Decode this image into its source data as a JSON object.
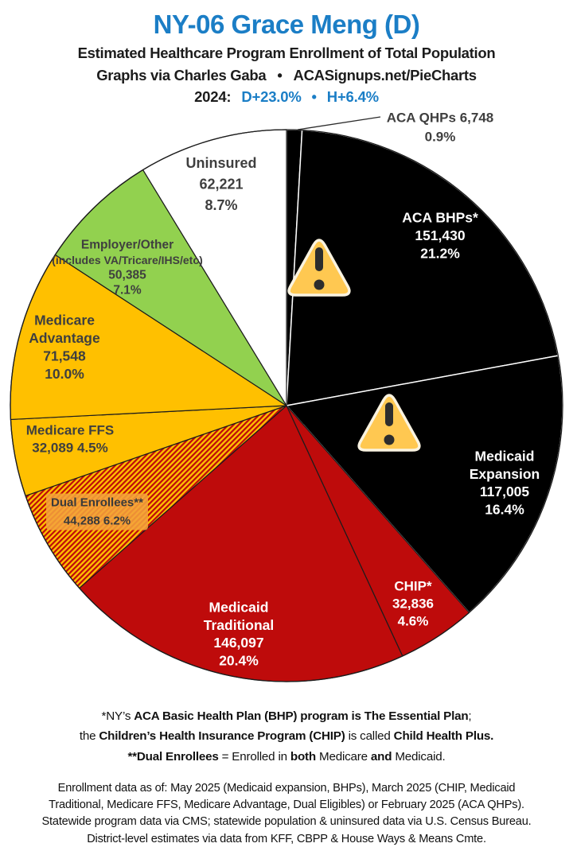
{
  "header": {
    "title": "NY-06 Grace Meng (D)",
    "subtitle": "Estimated Healthcare Program Enrollment of Total Population",
    "credit_prefix": "Graphs via Charles Gaba",
    "credit_bullet": "•",
    "credit_site": "ACASignups.net/PieCharts",
    "election_year_label": "2024:",
    "election_dem_margin": "D+23.0%",
    "election_bullet": "•",
    "election_house_margin": "H+6.4%",
    "accent_blue": "#1B7EC6"
  },
  "chart_data": {
    "type": "pie",
    "title": "Estimated Healthcare Program Enrollment of Total Population",
    "start_angle_deg": 0,
    "direction": "clockwise",
    "slices": [
      {
        "label": "ACA QHPs",
        "value": 6748,
        "display_value": "6,748",
        "pct_value": 0.9,
        "display_pct": "0.9%",
        "color": "#000000",
        "text_color": "#3F3F3F",
        "label_lines": [
          "ACA QHPs 6,748",
          "0.9%"
        ],
        "label_style": "leader"
      },
      {
        "label": "ACA BHPs*",
        "value": 151430,
        "display_value": "151,430",
        "pct_value": 21.2,
        "display_pct": "21.2%",
        "color": "#000000",
        "text_color": "#FFFFFF",
        "label_lines": [
          "ACA BHPs*",
          "151,430",
          "21.2%"
        ],
        "label_style": "inside"
      },
      {
        "label": "Medicaid Expansion",
        "value": 117005,
        "display_value": "117,005",
        "pct_value": 16.4,
        "display_pct": "16.4%",
        "color": "#000000",
        "text_color": "#FFFFFF",
        "label_lines": [
          "Medicaid",
          "Expansion",
          "117,005",
          "16.4%"
        ],
        "label_style": "inside"
      },
      {
        "label": "CHIP*",
        "value": 32836,
        "display_value": "32,836",
        "pct_value": 4.6,
        "display_pct": "4.6%",
        "color": "#BE0B0B",
        "text_color": "#FFFFFF",
        "label_lines": [
          "CHIP*",
          "32,836",
          "4.6%"
        ],
        "label_style": "inside"
      },
      {
        "label": "Medicaid Traditional",
        "value": 146097,
        "display_value": "146,097",
        "pct_value": 20.4,
        "display_pct": "20.4%",
        "color": "#BE0B0B",
        "text_color": "#FFFFFF",
        "label_lines": [
          "Medicaid",
          "Traditional",
          "146,097",
          "20.4%"
        ],
        "label_style": "inside"
      },
      {
        "label": "Dual Enrollees**",
        "value": 44288,
        "display_value": "44,288",
        "pct_value": 6.2,
        "display_pct": "6.2%",
        "color": "hatch-red-gold",
        "text_color": "#3A3A3A",
        "label_lines": [
          "Dual Enrollees**",
          "44,288 6.2%"
        ],
        "label_style": "boxed"
      },
      {
        "label": "Medicare FFS",
        "value": 32089,
        "display_value": "32,089",
        "pct_value": 4.5,
        "display_pct": "4.5%",
        "color": "#FFC000",
        "text_color": "#3F3F3F",
        "label_lines": [
          "Medicare FFS",
          "32,089 4.5%"
        ],
        "label_style": "inside"
      },
      {
        "label": "Medicare Advantage",
        "value": 71548,
        "display_value": "71,548",
        "pct_value": 10.0,
        "display_pct": "10.0%",
        "color": "#FFC000",
        "text_color": "#3F3F3F",
        "label_lines": [
          "Medicare",
          "Advantage",
          "71,548",
          "10.0%"
        ],
        "label_style": "inside"
      },
      {
        "label": "Employer/Other",
        "value": 50385,
        "display_value": "50,385",
        "pct_value": 7.1,
        "display_pct": "7.1%",
        "color": "#92D14F",
        "text_color": "#3F3F3F",
        "label_lines": [
          "Employer/Other",
          "(includes VA/Tricare/IHS/etc)",
          "50,385",
          "7.1%"
        ],
        "label_style": "inside"
      },
      {
        "label": "Uninsured",
        "value": 62221,
        "display_value": "62,221",
        "pct_value": 8.7,
        "display_pct": "8.7%",
        "color": "#FFFFFF",
        "text_color": "#3F3F3F",
        "label_lines": [
          "Uninsured",
          "62,221",
          "8.7%"
        ],
        "label_style": "inside"
      }
    ],
    "warning_icons": {
      "name": "warning-triangle-icon",
      "count": 2,
      "fill": "#FFC851"
    },
    "hatch_colors": {
      "base": "#FFC000",
      "stripe": "#BE0B0B"
    },
    "legend_position": "none",
    "grid": false
  },
  "footnotes": {
    "lines": [
      [
        {
          "t": "*NY’s ",
          "b": false
        },
        {
          "t": "ACA Basic Health Plan (BHP) program is The Essential Plan",
          "b": true
        },
        {
          "t": ";",
          "b": false
        }
      ],
      [
        {
          "t": "the ",
          "b": false
        },
        {
          "t": "Children’s Health Insurance Program (CHIP)",
          "b": true
        },
        {
          "t": " is called ",
          "b": false
        },
        {
          "t": "Child Health Plus.",
          "b": true
        }
      ],
      [
        {
          "t": "**Dual Enrollees",
          "b": true
        },
        {
          "t": " = Enrolled in ",
          "b": false
        },
        {
          "t": "both",
          "b": true
        },
        {
          "t": " Medicare ",
          "b": false
        },
        {
          "t": "and",
          "b": true
        },
        {
          "t": " Medicaid.",
          "b": false
        }
      ]
    ]
  },
  "source_note": {
    "lines": [
      "Enrollment data as of: May 2025 (Medicaid expansion, BHPs), March 2025 (CHIP, Medicaid",
      "Traditional, Medicare FFS, Medicare Advantage, Dual Eligibles) or February 2025 (ACA QHPs).",
      "Statewide program data via CMS; statewide population & uninsured data via U.S. Census Bureau.",
      "District-level estimates via data from KFF, CBPP & House Ways & Means Cmte."
    ]
  }
}
